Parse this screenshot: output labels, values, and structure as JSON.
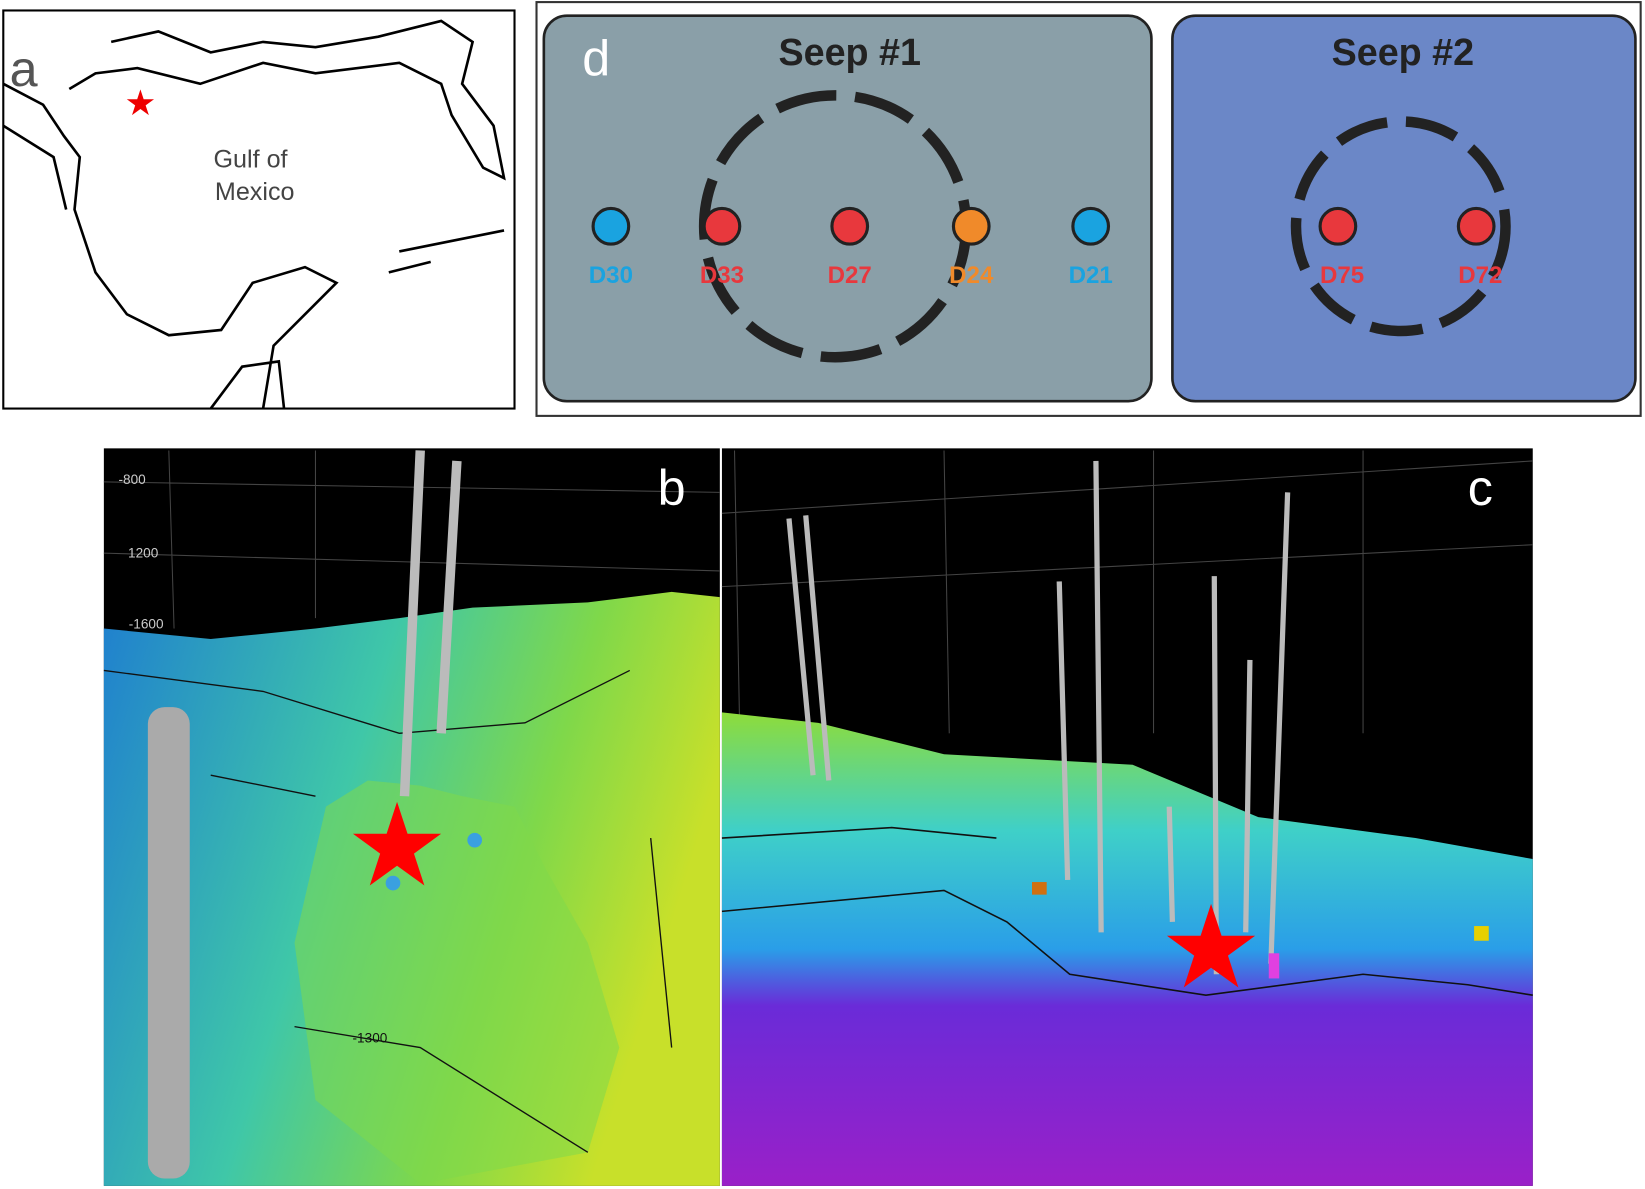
{
  "panels": {
    "a": {
      "label": "a",
      "place": [
        "Gulf of",
        "Mexico"
      ]
    },
    "b": {
      "label": "b",
      "depth_labels": [
        "-800",
        "1200",
        "-1600",
        "-1300"
      ]
    },
    "c": {
      "label": "c"
    },
    "d": {
      "label": "d",
      "seeps": [
        {
          "title": "Seep #1",
          "dives": [
            {
              "name": "D30",
              "color": "#1aa3e0"
            },
            {
              "name": "D33",
              "color": "#e8383d"
            },
            {
              "name": "D27",
              "color": "#e8383d"
            },
            {
              "name": "D24",
              "color": "#f08a2a"
            },
            {
              "name": "D21",
              "color": "#1aa3e0"
            }
          ]
        },
        {
          "title": "Seep #2",
          "dives": [
            {
              "name": "D75",
              "color": "#e8383d"
            },
            {
              "name": "D72",
              "color": "#e8383d"
            }
          ]
        }
      ]
    }
  }
}
